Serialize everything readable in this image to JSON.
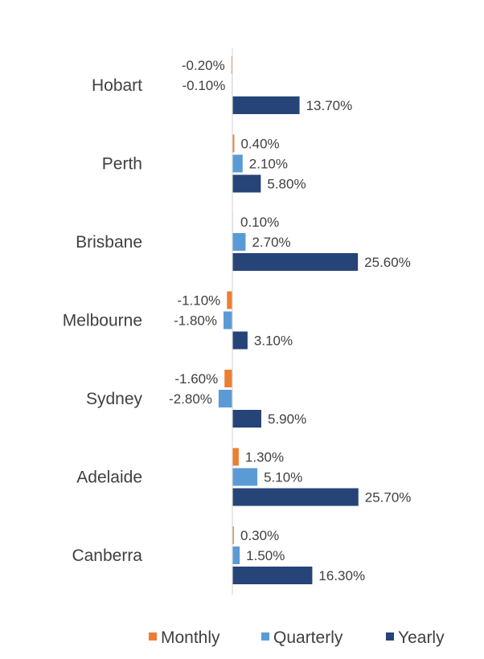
{
  "chart_data": {
    "type": "bar",
    "orientation": "horizontal",
    "categories": [
      "Hobart",
      "Perth",
      "Brisbane",
      "Melbourne",
      "Sydney",
      "Adelaide",
      "Canberra"
    ],
    "series": [
      {
        "name": "Monthly",
        "color": "#ED7D31",
        "values": [
          -0.2,
          0.4,
          0.1,
          -1.1,
          -1.6,
          1.3,
          0.3
        ],
        "labels": [
          "-0.20%",
          "0.40%",
          "0.10%",
          "-1.10%",
          "-1.60%",
          "1.30%",
          "0.30%"
        ]
      },
      {
        "name": "Quarterly",
        "color": "#5B9BD5",
        "values": [
          -0.1,
          2.1,
          2.7,
          -1.8,
          -2.8,
          5.1,
          1.5
        ],
        "labels": [
          "-0.10%",
          "2.10%",
          "2.70%",
          "-1.80%",
          "-2.80%",
          "5.10%",
          "1.50%"
        ]
      },
      {
        "name": "Yearly",
        "color": "#264478",
        "values": [
          13.7,
          5.8,
          25.6,
          3.1,
          5.9,
          25.7,
          16.3
        ],
        "labels": [
          "13.70%",
          "5.80%",
          "25.60%",
          "3.10%",
          "5.90%",
          "25.70%",
          "16.30%"
        ]
      }
    ],
    "legend_position": "bottom",
    "grid": false,
    "xlabel": "",
    "ylabel": ""
  }
}
